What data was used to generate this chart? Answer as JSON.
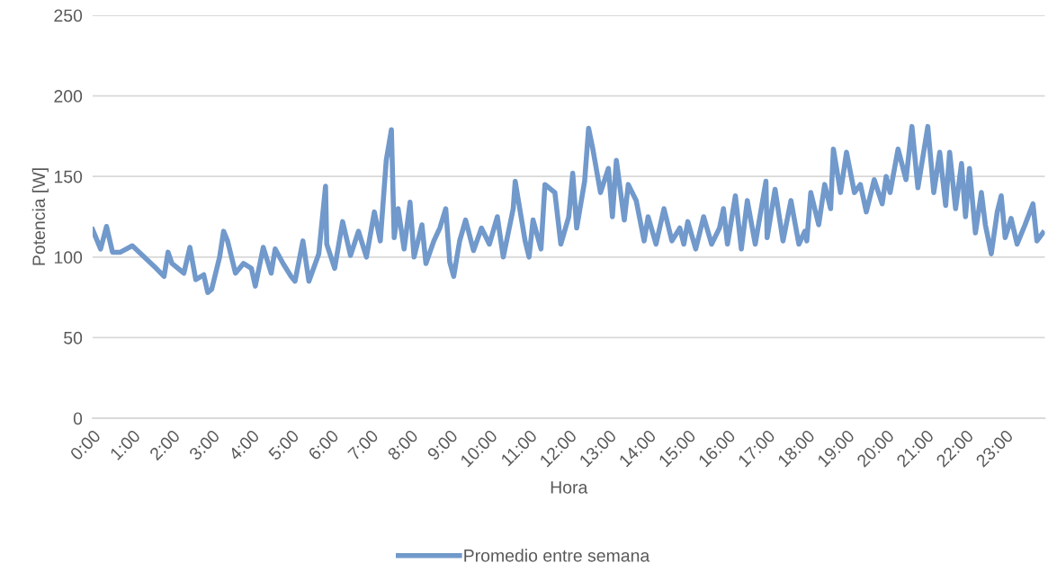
{
  "chart_data": {
    "type": "line",
    "xlabel": "Hora",
    "ylabel": "Potencia [W]",
    "xlim": [
      0,
      24
    ],
    "ylim": [
      0,
      250
    ],
    "yticks": [
      0,
      50,
      100,
      150,
      200,
      250
    ],
    "xticks": [
      {
        "value": 0,
        "label": "0:00"
      },
      {
        "value": 1,
        "label": "1:00"
      },
      {
        "value": 2,
        "label": "2:00"
      },
      {
        "value": 3,
        "label": "3:00"
      },
      {
        "value": 4,
        "label": "4:00"
      },
      {
        "value": 5,
        "label": "5:00"
      },
      {
        "value": 6,
        "label": "6:00"
      },
      {
        "value": 7,
        "label": "7:00"
      },
      {
        "value": 8,
        "label": "8:00"
      },
      {
        "value": 9,
        "label": "9:00"
      },
      {
        "value": 10,
        "label": "10:00"
      },
      {
        "value": 11,
        "label": "11:00"
      },
      {
        "value": 12,
        "label": "12:00"
      },
      {
        "value": 13,
        "label": "13:00"
      },
      {
        "value": 14,
        "label": "14:00"
      },
      {
        "value": 15,
        "label": "15:00"
      },
      {
        "value": 16,
        "label": "16:00"
      },
      {
        "value": 17,
        "label": "17:00"
      },
      {
        "value": 18,
        "label": "18:00"
      },
      {
        "value": 19,
        "label": "19:00"
      },
      {
        "value": 20,
        "label": "20:00"
      },
      {
        "value": 21,
        "label": "21:00"
      },
      {
        "value": 22,
        "label": "22:00"
      },
      {
        "value": 23,
        "label": "23:00"
      }
    ],
    "grid": "y",
    "legend": "bottom",
    "marker": "none",
    "line_style": "solid",
    "series": [
      {
        "name": "Promedio entre semana",
        "color": "#7199cb",
        "x": [
          0,
          0.2,
          0.35,
          0.5,
          0.7,
          1.0,
          1.3,
          1.6,
          1.8,
          1.9,
          2.0,
          2.3,
          2.45,
          2.6,
          2.8,
          2.9,
          3.0,
          3.2,
          3.3,
          3.4,
          3.6,
          3.8,
          4.0,
          4.1,
          4.3,
          4.5,
          4.6,
          4.8,
          5.0,
          5.1,
          5.3,
          5.45,
          5.7,
          5.87,
          5.9,
          6.1,
          6.3,
          6.5,
          6.7,
          6.9,
          7.0,
          7.1,
          7.25,
          7.4,
          7.53,
          7.6,
          7.7,
          7.85,
          8.0,
          8.1,
          8.3,
          8.4,
          8.6,
          8.75,
          8.9,
          9.0,
          9.1,
          9.25,
          9.4,
          9.6,
          9.8,
          10.0,
          10.2,
          10.35,
          10.6,
          10.65,
          10.9,
          11.0,
          11.1,
          11.3,
          11.4,
          11.65,
          11.8,
          12.0,
          12.1,
          12.2,
          12.4,
          12.5,
          12.6,
          12.8,
          13.0,
          13.1,
          13.2,
          13.4,
          13.5,
          13.7,
          13.9,
          14.0,
          14.2,
          14.4,
          14.6,
          14.8,
          14.9,
          15.0,
          15.2,
          15.4,
          15.6,
          15.8,
          15.9,
          16.0,
          16.2,
          16.35,
          16.5,
          16.7,
          16.97,
          17.0,
          17.2,
          17.4,
          17.6,
          17.8,
          17.95,
          18.0,
          18.1,
          18.3,
          18.45,
          18.6,
          18.67,
          18.85,
          19.0,
          19.2,
          19.35,
          19.5,
          19.7,
          19.9,
          20.0,
          20.1,
          20.3,
          20.5,
          20.65,
          20.8,
          21.05,
          21.2,
          21.35,
          21.5,
          21.6,
          21.75,
          21.9,
          22.0,
          22.1,
          22.25,
          22.4,
          22.5,
          22.65,
          22.8,
          22.9,
          23.0,
          23.15,
          23.3,
          23.5,
          23.7,
          23.8,
          23.95
        ],
        "values": [
          117,
          105,
          119,
          103,
          103,
          107,
          100,
          93,
          88,
          103,
          96,
          90,
          106,
          86,
          89,
          78,
          80,
          100,
          116,
          110,
          90,
          96,
          93,
          82,
          106,
          90,
          105,
          96,
          88,
          85,
          110,
          85,
          102,
          144,
          108,
          93,
          122,
          101,
          116,
          100,
          114,
          128,
          110,
          160,
          179,
          112,
          130,
          105,
          134,
          100,
          120,
          96,
          110,
          118,
          130,
          97,
          88,
          110,
          123,
          104,
          118,
          108,
          125,
          100,
          130,
          147,
          110,
          100,
          123,
          105,
          145,
          140,
          108,
          125,
          152,
          118,
          147,
          180,
          168,
          140,
          155,
          125,
          160,
          123,
          145,
          135,
          110,
          125,
          108,
          130,
          110,
          118,
          108,
          122,
          105,
          125,
          108,
          118,
          130,
          108,
          138,
          105,
          135,
          108,
          147,
          112,
          142,
          110,
          135,
          108,
          116,
          110,
          140,
          120,
          145,
          130,
          167,
          140,
          165,
          140,
          145,
          128,
          148,
          133,
          150,
          140,
          167,
          148,
          181,
          143,
          181,
          140,
          165,
          132,
          165,
          130,
          158,
          125,
          155,
          115,
          140,
          120,
          102,
          128,
          138,
          112,
          124,
          108,
          120,
          133,
          110,
          115
        ]
      }
    ]
  }
}
